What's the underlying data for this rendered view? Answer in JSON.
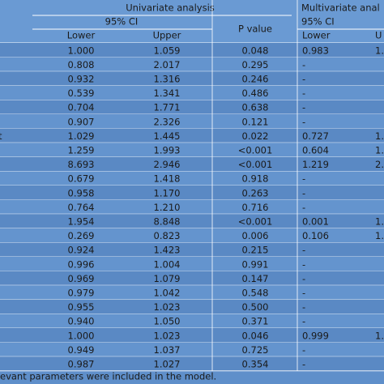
{
  "header": {
    "univariate": "Univariate analysis",
    "multivariate": "Multivariate anal",
    "ci_uni": "95% CI",
    "ci_multi": "95% CI",
    "lower": "Lower",
    "upper": "Upper",
    "p_value": "P value",
    "lower_multi": "Lower",
    "upper_multi": "U"
  },
  "table": {
    "rows": [
      {
        "cells": [
          "1.000",
          "1.059",
          "0.048",
          "0.983",
          "1."
        ]
      },
      {
        "cells": [
          "0.808",
          "2.017",
          "0.295",
          "-"
        ]
      },
      {
        "cells": [
          "0.932",
          "1.316",
          "0.246",
          "-"
        ]
      },
      {
        "cells": [
          "0.539",
          "1.341",
          "0.486",
          "-"
        ]
      },
      {
        "cells": [
          "0.704",
          "1.771",
          "0.638",
          "-"
        ]
      },
      {
        "cells": [
          "0.907",
          "2.326",
          "0.121",
          "-"
        ]
      },
      {
        "label": "t",
        "cells": [
          "1.029",
          "1.445",
          "0.022",
          "0.727",
          "1."
        ]
      },
      {
        "cells": [
          "1.259",
          "1.993",
          "<0.001",
          "0.604",
          "1."
        ]
      },
      {
        "cells": [
          "8.693",
          "2.946",
          "<0.001",
          "1.219",
          "2."
        ]
      },
      {
        "cells": [
          "0.679",
          "1.418",
          "0.918",
          "-"
        ]
      },
      {
        "cells": [
          "0.958",
          "1.170",
          "0.263",
          "-"
        ]
      },
      {
        "cells": [
          "0.764",
          "1.210",
          "0.716",
          "-"
        ]
      },
      {
        "cells": [
          "1.954",
          "8.848",
          "<0.001",
          "0.001",
          "1."
        ]
      },
      {
        "cells": [
          "0.269",
          "0.823",
          "0.006",
          "0.106",
          "1."
        ]
      },
      {
        "cells": [
          "0.924",
          "1.423",
          "0.215",
          "-"
        ]
      },
      {
        "cells": [
          "0.996",
          "1.004",
          "0.991",
          "-"
        ]
      },
      {
        "cells": [
          "0.969",
          "1.079",
          "0.147",
          "-"
        ]
      },
      {
        "cells": [
          "0.979",
          "1.042",
          "0.548",
          "-"
        ]
      },
      {
        "cells": [
          "0.955",
          "1.023",
          "0.500",
          "-"
        ]
      },
      {
        "cells": [
          "0.940",
          "1.050",
          "0.371",
          "-"
        ]
      },
      {
        "cells": [
          "1.000",
          "1.023",
          "0.046",
          "0.999",
          "1."
        ]
      },
      {
        "cells": [
          "0.949",
          "1.037",
          "0.725",
          "-"
        ]
      },
      {
        "cells": [
          "0.987",
          "1.027",
          "0.354",
          "-"
        ]
      }
    ]
  },
  "footer": "evant parameters were included in the model."
}
